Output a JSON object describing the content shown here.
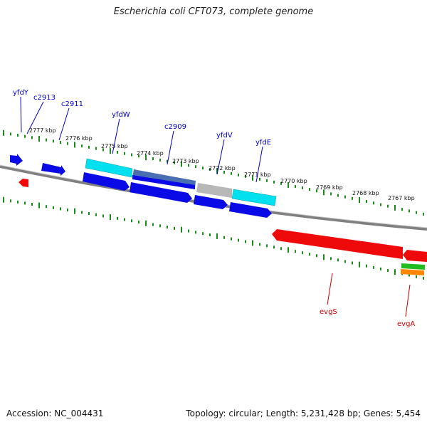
{
  "title": "Escherichia coli CFT073, complete genome",
  "footer": {
    "accession": "Accession: NC_004431",
    "topology": "Topology: circular; Length: 5,231,428 bp; Genes: 5,454"
  },
  "colors": {
    "forward_gene": "#0a0ae6",
    "forward_alt": "#00e0ee",
    "forward_grey": "#b8b8b8",
    "forward_steel": "#4a6fb0",
    "reverse_gene": "#ee0a0a",
    "reverse_green": "#22bb22",
    "reverse_orange": "#ff8800",
    "backbone": "#808080",
    "ticks": "#1a8a1a",
    "forward_label": "#0000cc",
    "reverse_label": "#cc0000"
  },
  "scale_labels": [
    "2777 kbp",
    "2776 kbp",
    "2775 kbp",
    "2774 kbp",
    "2773 kbp",
    "2772 kbp",
    "2771 kbp",
    "2770 kbp",
    "2769 kbp",
    "2768 kbp",
    "2767 kbp"
  ],
  "gene_labels": {
    "forward": [
      "yfdY",
      "c2913",
      "c2911",
      "yfdW",
      "c2909",
      "yfdV",
      "yfdE"
    ],
    "reverse": [
      "evgS",
      "evgA"
    ]
  }
}
